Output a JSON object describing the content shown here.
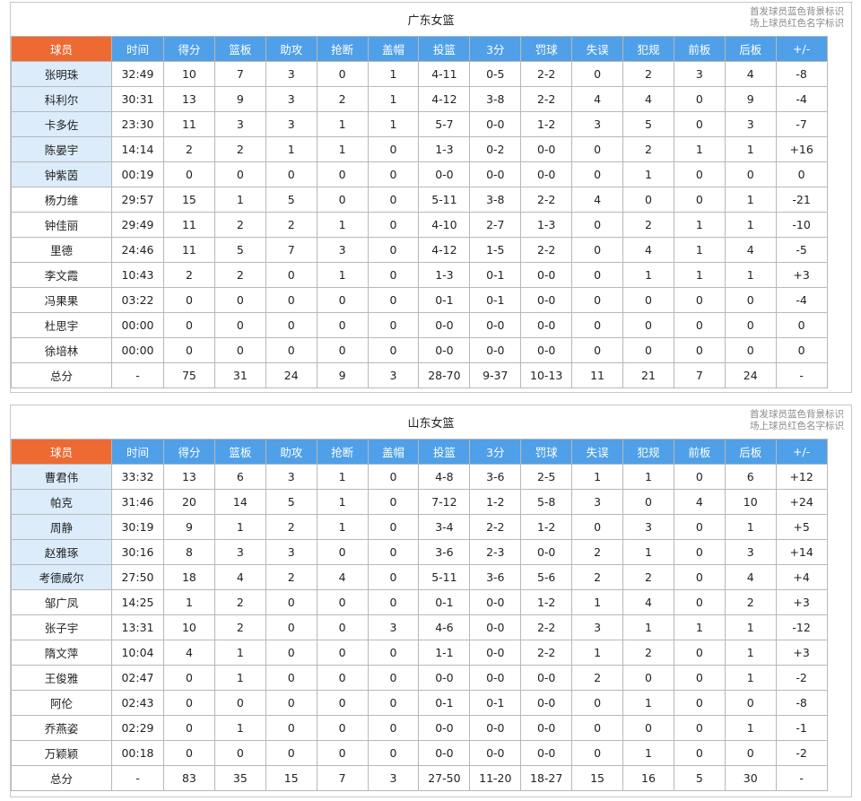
{
  "legend": {
    "line1": "首发球员蓝色背景标识",
    "line2": "场上球员红色名字标识"
  },
  "columns": [
    "球员",
    "时间",
    "得分",
    "篮板",
    "助攻",
    "抢断",
    "盖帽",
    "投篮",
    "3分",
    "罚球",
    "失误",
    "犯规",
    "前板",
    "后板",
    "+/-"
  ],
  "colors": {
    "player_header": "#ee6a33",
    "stat_header": "#4fa0e8",
    "starter_bg": "#dcecfb",
    "legend_text": "#8a8a8a"
  },
  "teams": [
    {
      "name": "广东女篮",
      "players": [
        {
          "name": "张明珠",
          "starter": true,
          "stats": [
            "32:49",
            "10",
            "7",
            "3",
            "0",
            "1",
            "4-11",
            "0-5",
            "2-2",
            "0",
            "2",
            "3",
            "4",
            "-8"
          ]
        },
        {
          "name": "科利尔",
          "starter": true,
          "stats": [
            "30:31",
            "13",
            "9",
            "3",
            "2",
            "1",
            "4-12",
            "3-8",
            "2-2",
            "4",
            "4",
            "0",
            "9",
            "-4"
          ]
        },
        {
          "name": "卡多佐",
          "starter": true,
          "stats": [
            "23:30",
            "11",
            "3",
            "3",
            "1",
            "1",
            "5-7",
            "0-0",
            "1-2",
            "3",
            "5",
            "0",
            "3",
            "-7"
          ]
        },
        {
          "name": "陈晏宇",
          "starter": true,
          "stats": [
            "14:14",
            "2",
            "2",
            "1",
            "1",
            "0",
            "1-3",
            "0-2",
            "0-0",
            "0",
            "2",
            "1",
            "1",
            "+16"
          ]
        },
        {
          "name": "钟紫茵",
          "starter": true,
          "stats": [
            "00:19",
            "0",
            "0",
            "0",
            "0",
            "0",
            "0-0",
            "0-0",
            "0-0",
            "0",
            "1",
            "0",
            "0",
            "0"
          ]
        },
        {
          "name": "杨力维",
          "starter": false,
          "stats": [
            "29:57",
            "15",
            "1",
            "5",
            "0",
            "0",
            "5-11",
            "3-8",
            "2-2",
            "4",
            "0",
            "0",
            "1",
            "-21"
          ]
        },
        {
          "name": "钟佳丽",
          "starter": false,
          "stats": [
            "29:49",
            "11",
            "2",
            "2",
            "1",
            "0",
            "4-10",
            "2-7",
            "1-3",
            "0",
            "2",
            "1",
            "1",
            "-10"
          ]
        },
        {
          "name": "里德",
          "starter": false,
          "stats": [
            "24:46",
            "11",
            "5",
            "7",
            "3",
            "0",
            "4-12",
            "1-5",
            "2-2",
            "0",
            "4",
            "1",
            "4",
            "-5"
          ]
        },
        {
          "name": "李文霞",
          "starter": false,
          "stats": [
            "10:43",
            "2",
            "2",
            "0",
            "1",
            "0",
            "1-3",
            "0-1",
            "0-0",
            "0",
            "1",
            "1",
            "1",
            "+3"
          ]
        },
        {
          "name": "冯果果",
          "starter": false,
          "stats": [
            "03:22",
            "0",
            "0",
            "0",
            "0",
            "0",
            "0-1",
            "0-1",
            "0-0",
            "0",
            "0",
            "0",
            "0",
            "-4"
          ]
        },
        {
          "name": "杜思宇",
          "starter": false,
          "stats": [
            "00:00",
            "0",
            "0",
            "0",
            "0",
            "0",
            "0-0",
            "0-0",
            "0-0",
            "0",
            "0",
            "0",
            "0",
            "0"
          ]
        },
        {
          "name": "徐培林",
          "starter": false,
          "stats": [
            "00:00",
            "0",
            "0",
            "0",
            "0",
            "0",
            "0-0",
            "0-0",
            "0-0",
            "0",
            "0",
            "0",
            "0",
            "0"
          ]
        }
      ],
      "totals": {
        "label": "总分",
        "stats": [
          "-",
          "75",
          "31",
          "24",
          "9",
          "3",
          "28-70",
          "9-37",
          "10-13",
          "11",
          "21",
          "7",
          "24",
          "-"
        ]
      }
    },
    {
      "name": "山东女篮",
      "players": [
        {
          "name": "曹君伟",
          "starter": true,
          "stats": [
            "33:32",
            "13",
            "6",
            "3",
            "1",
            "0",
            "4-8",
            "3-6",
            "2-5",
            "1",
            "1",
            "0",
            "6",
            "+12"
          ]
        },
        {
          "name": "帕克",
          "starter": true,
          "stats": [
            "31:46",
            "20",
            "14",
            "5",
            "1",
            "0",
            "7-12",
            "1-2",
            "5-8",
            "3",
            "0",
            "4",
            "10",
            "+24"
          ]
        },
        {
          "name": "周静",
          "starter": true,
          "stats": [
            "30:19",
            "9",
            "1",
            "2",
            "1",
            "0",
            "3-4",
            "2-2",
            "1-2",
            "0",
            "3",
            "0",
            "1",
            "+5"
          ]
        },
        {
          "name": "赵雅琢",
          "starter": true,
          "stats": [
            "30:16",
            "8",
            "3",
            "3",
            "0",
            "0",
            "3-6",
            "2-3",
            "0-0",
            "2",
            "1",
            "0",
            "3",
            "+14"
          ]
        },
        {
          "name": "考德威尔",
          "starter": true,
          "stats": [
            "27:50",
            "18",
            "4",
            "2",
            "4",
            "0",
            "5-11",
            "3-6",
            "5-6",
            "2",
            "2",
            "0",
            "4",
            "+4"
          ]
        },
        {
          "name": "邹广凤",
          "starter": false,
          "stats": [
            "14:25",
            "1",
            "2",
            "0",
            "0",
            "0",
            "0-1",
            "0-0",
            "1-2",
            "1",
            "4",
            "0",
            "2",
            "+3"
          ]
        },
        {
          "name": "张子宇",
          "starter": false,
          "stats": [
            "13:31",
            "10",
            "2",
            "0",
            "0",
            "3",
            "4-6",
            "0-0",
            "2-2",
            "3",
            "1",
            "1",
            "1",
            "-12"
          ]
        },
        {
          "name": "隋文萍",
          "starter": false,
          "stats": [
            "10:04",
            "4",
            "1",
            "0",
            "0",
            "0",
            "1-1",
            "0-0",
            "2-2",
            "1",
            "2",
            "0",
            "1",
            "+3"
          ]
        },
        {
          "name": "王俊雅",
          "starter": false,
          "stats": [
            "02:47",
            "0",
            "1",
            "0",
            "0",
            "0",
            "0-0",
            "0-0",
            "0-0",
            "2",
            "0",
            "0",
            "1",
            "-2"
          ]
        },
        {
          "name": "阿伦",
          "starter": false,
          "stats": [
            "02:43",
            "0",
            "0",
            "0",
            "0",
            "0",
            "0-1",
            "0-1",
            "0-0",
            "0",
            "1",
            "0",
            "0",
            "-8"
          ]
        },
        {
          "name": "乔燕姿",
          "starter": false,
          "stats": [
            "02:29",
            "0",
            "1",
            "0",
            "0",
            "0",
            "0-0",
            "0-0",
            "0-0",
            "0",
            "0",
            "0",
            "1",
            "-1"
          ]
        },
        {
          "name": "万颖颖",
          "starter": false,
          "stats": [
            "00:18",
            "0",
            "0",
            "0",
            "0",
            "0",
            "0-0",
            "0-0",
            "0-0",
            "0",
            "1",
            "0",
            "0",
            "-2"
          ]
        }
      ],
      "totals": {
        "label": "总分",
        "stats": [
          "-",
          "83",
          "35",
          "15",
          "7",
          "3",
          "27-50",
          "11-20",
          "18-27",
          "15",
          "16",
          "5",
          "30",
          "-"
        ]
      }
    }
  ]
}
